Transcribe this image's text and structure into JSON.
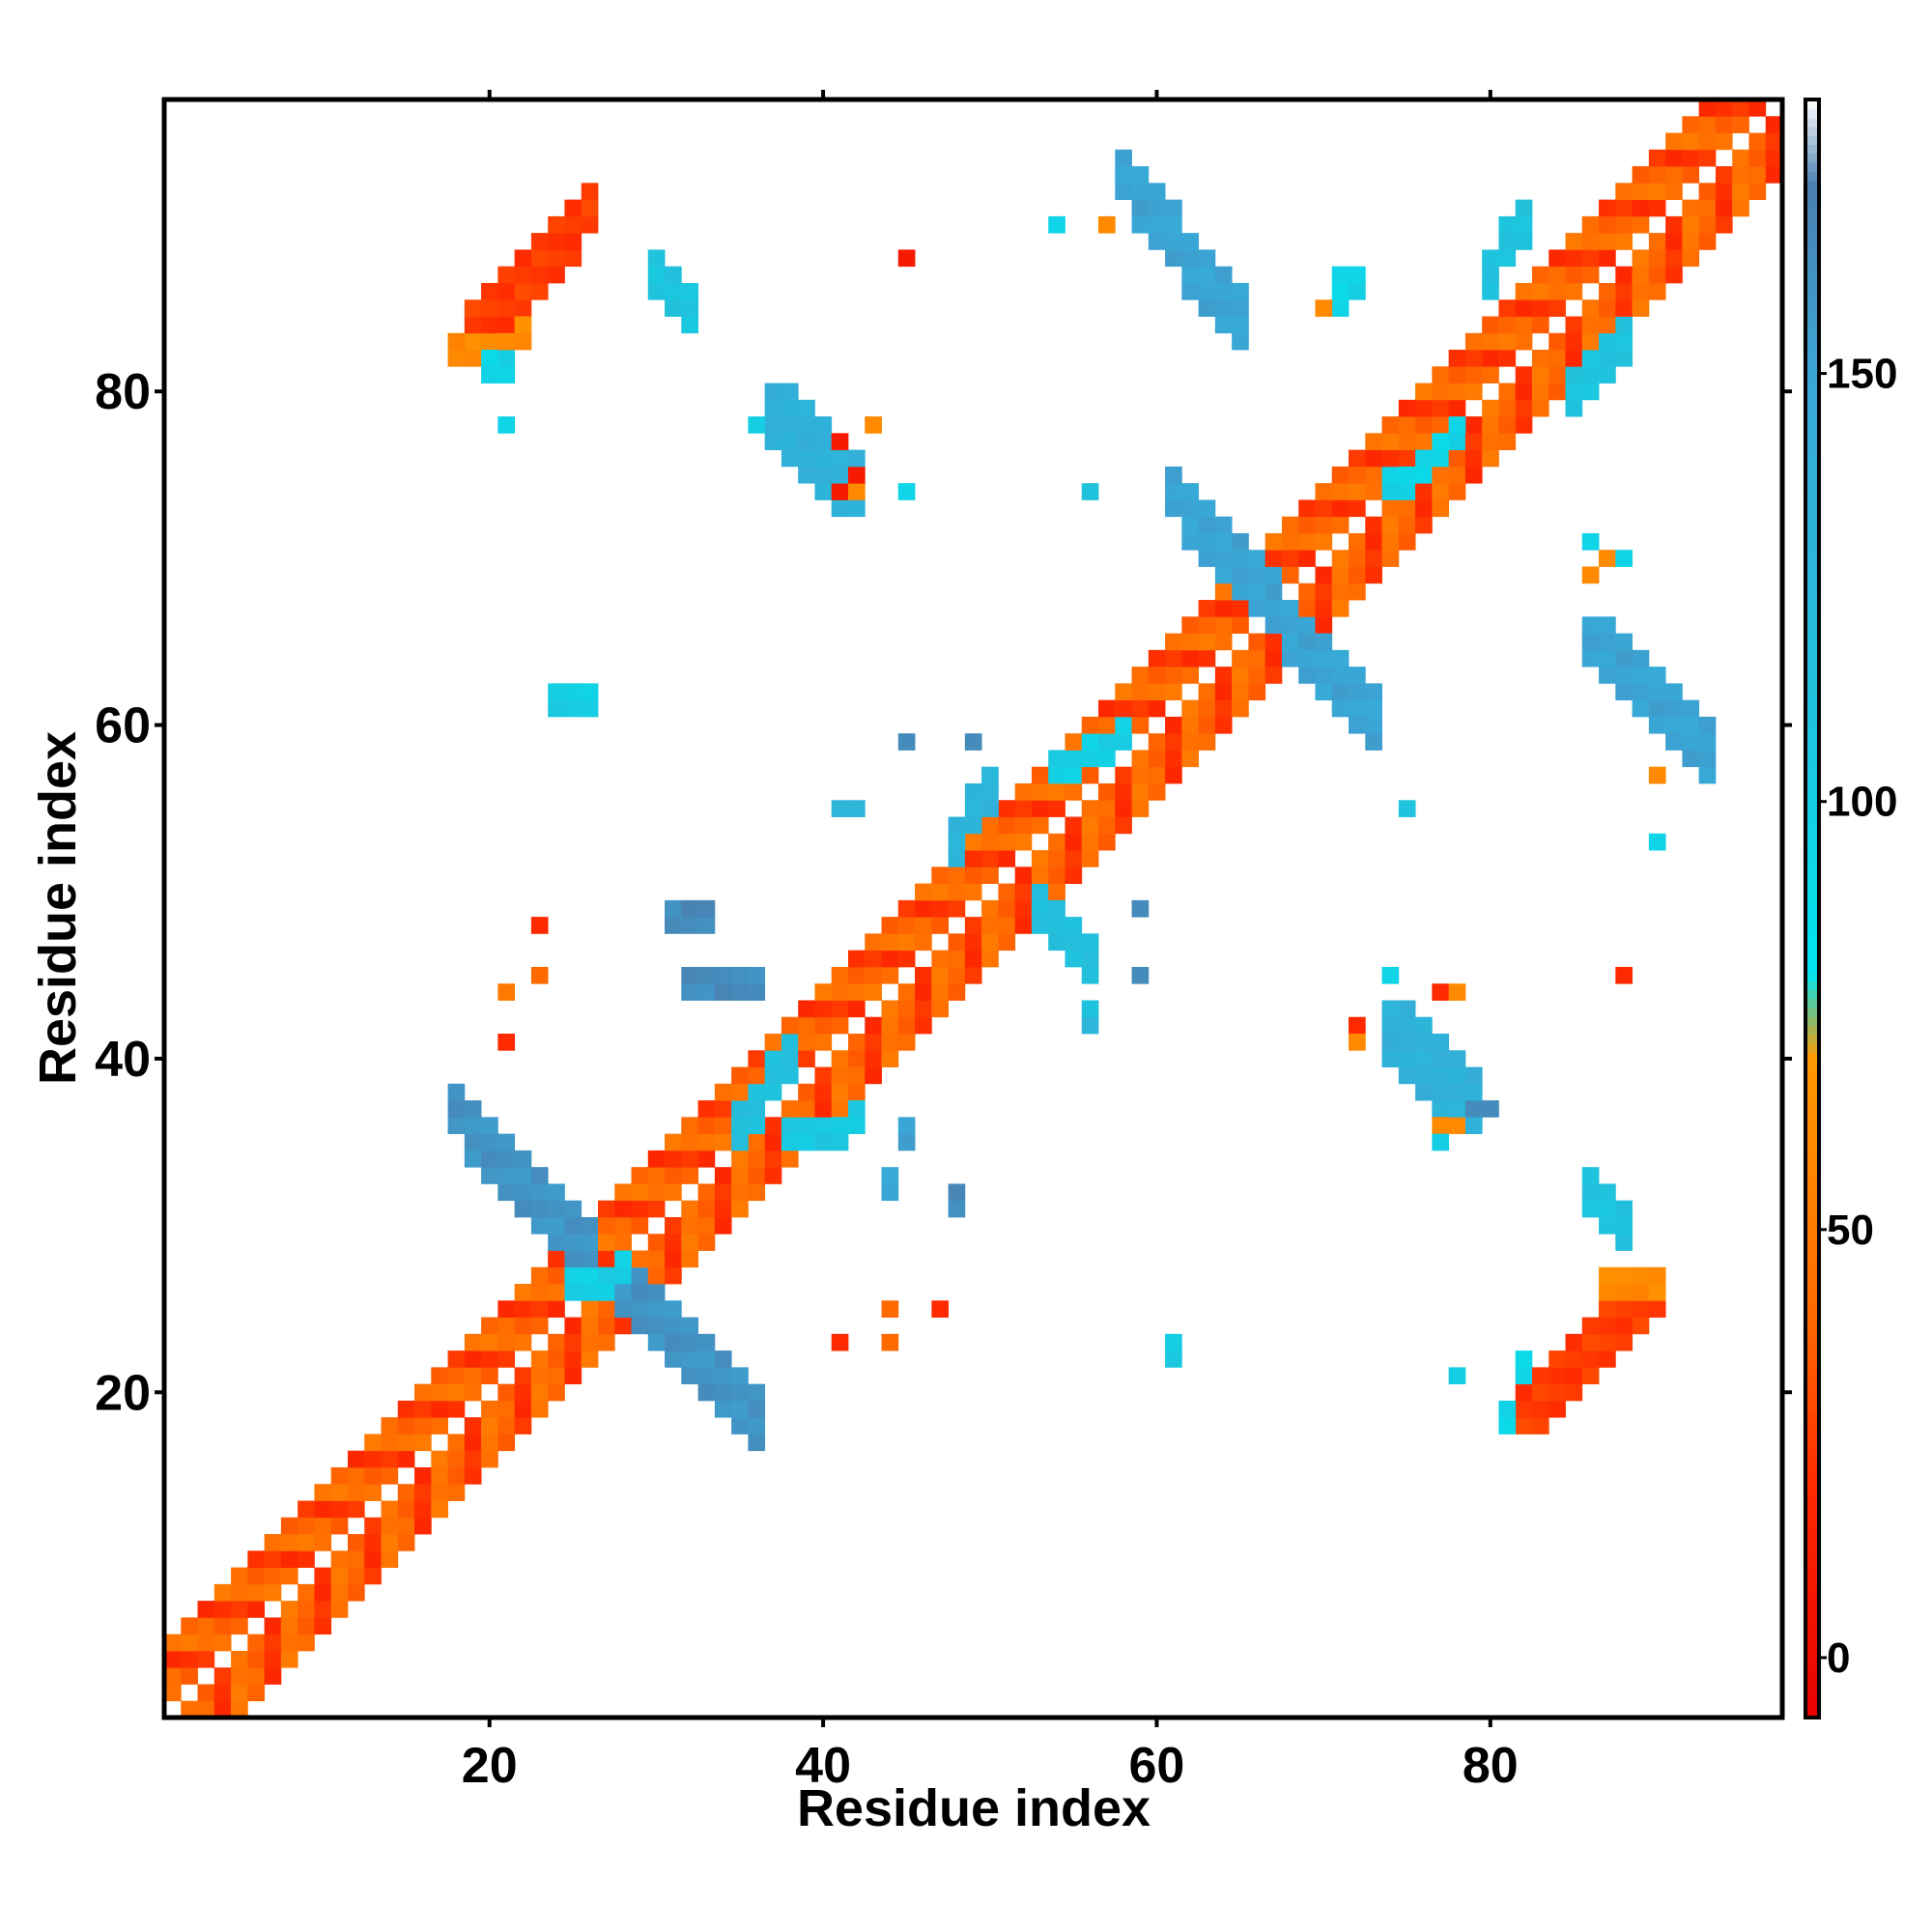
{
  "chart_data": {
    "type": "heatmap",
    "title": "",
    "xlabel": "Residue index",
    "ylabel": "Residue index",
    "xlim": [
      0.5,
      97.5
    ],
    "ylim": [
      0.5,
      97.5
    ],
    "x_ticks": [
      20,
      40,
      60,
      80
    ],
    "y_ticks": [
      20,
      40,
      60,
      80
    ],
    "colorbar": {
      "range": [
        -7,
        182
      ],
      "ticks": [
        0,
        50,
        100,
        150
      ],
      "stops": [
        {
          "value": -7,
          "color": "#e60000"
        },
        {
          "value": 20,
          "color": "#ff2a00"
        },
        {
          "value": 40,
          "color": "#ff6a00"
        },
        {
          "value": 70,
          "color": "#ff9900"
        },
        {
          "value": 80,
          "color": "#00e5f0"
        },
        {
          "value": 110,
          "color": "#1fc3dd"
        },
        {
          "value": 150,
          "color": "#3aa6d6"
        },
        {
          "value": 172,
          "color": "#4a7fb0"
        },
        {
          "value": 182,
          "color": "#ffffff"
        }
      ]
    },
    "diagonal": {
      "from": 1,
      "to": 97,
      "band": 4,
      "gap": 1,
      "values": [
        35,
        18,
        42
      ]
    },
    "patches": [
      {
        "x": [
          19,
          26
        ],
        "y": [
          83,
          91
        ],
        "dir": "pos",
        "width": 3,
        "value": 25
      },
      {
        "x": [
          18,
          22
        ],
        "y": [
          82,
          83
        ],
        "dir": "pos",
        "width": 1,
        "value": 60
      },
      {
        "x": [
          20,
          21
        ],
        "y": [
          81,
          81
        ],
        "dir": "pos",
        "width": 1,
        "value": 95
      },
      {
        "x": [
          82,
          90
        ],
        "y": [
          19,
          26
        ],
        "dir": "pos",
        "width": 3,
        "value": 25
      },
      {
        "x": [
          87,
          90
        ],
        "y": [
          26,
          26
        ],
        "dir": "pos",
        "width": 1,
        "value": 60
      },
      {
        "x": [
          81,
          82
        ],
        "y": [
          18,
          21
        ],
        "dir": "pos",
        "width": 1,
        "value": 95
      },
      {
        "x": [
          18,
          26
        ],
        "y": [
          28,
          37
        ],
        "dir": "neg",
        "width": 3,
        "value": 160
      },
      {
        "x": [
          28,
          36
        ],
        "y": [
          18,
          26
        ],
        "dir": "neg",
        "width": 3,
        "value": 160
      },
      {
        "x": [
          25,
          28
        ],
        "y": [
          26,
          27
        ],
        "dir": "pos",
        "width": 1,
        "value": 100
      },
      {
        "x": [
          58,
          65
        ],
        "y": [
          84,
          93
        ],
        "dir": "neg",
        "width": 3,
        "value": 150
      },
      {
        "x": [
          61,
          67
        ],
        "y": [
          67,
          74
        ],
        "dir": "neg",
        "width": 3,
        "value": 150
      },
      {
        "x": [
          67,
          73
        ],
        "y": [
          60,
          67
        ],
        "dir": "neg",
        "width": 3,
        "value": 150
      },
      {
        "x": [
          86,
          93
        ],
        "y": [
          58,
          65
        ],
        "dir": "neg",
        "width": 3,
        "value": 150
      },
      {
        "x": [
          37,
          42
        ],
        "y": [
          74,
          79
        ],
        "dir": "neg",
        "width": 4,
        "value": 135
      },
      {
        "x": [
          74,
          79
        ],
        "y": [
          37,
          42
        ],
        "dir": "neg",
        "width": 4,
        "value": 135
      },
      {
        "x": [
          30,
          32
        ],
        "y": [
          85,
          87
        ],
        "dir": "neg",
        "width": 2,
        "value": 110
      },
      {
        "x": [
          86,
          88
        ],
        "y": [
          30,
          32
        ],
        "dir": "neg",
        "width": 2,
        "value": 110
      },
      {
        "x": [
          35,
          38
        ],
        "y": [
          36,
          40
        ],
        "dir": "pos",
        "width": 2,
        "value": 115
      },
      {
        "x": [
          38,
          42
        ],
        "y": [
          35,
          36
        ],
        "dir": "pos",
        "width": 1,
        "value": 105
      },
      {
        "x": [
          48,
          50
        ],
        "y": [
          53,
          56
        ],
        "dir": "pos",
        "width": 2,
        "value": 130
      },
      {
        "x": [
          53,
          56
        ],
        "y": [
          46,
          49
        ],
        "dir": "neg",
        "width": 2,
        "value": 115
      },
      {
        "x": [
          80,
          82
        ],
        "y": [
          87,
          90
        ],
        "dir": "pos",
        "width": 2,
        "value": 110
      },
      {
        "x": [
          85,
          88
        ],
        "y": [
          80,
          83
        ],
        "dir": "pos",
        "width": 2,
        "value": 110
      },
      {
        "x": [
          74,
          78
        ],
        "y": [
          74,
          77
        ],
        "dir": "pos",
        "width": 1,
        "value": 95
      },
      {
        "x": [
          54,
          58
        ],
        "y": [
          57,
          59
        ],
        "dir": "pos",
        "width": 1,
        "value": 100
      },
      {
        "x": [
          24,
          26
        ],
        "y": [
          61,
          61
        ],
        "dir": "pos",
        "width": 1,
        "value": 100
      },
      {
        "x": [
          31,
          33
        ],
        "y": [
          48,
          48
        ],
        "dir": "pos",
        "width": 1,
        "value": 165
      },
      {
        "x": [
          32,
          36
        ],
        "y": [
          44,
          44
        ],
        "dir": "pos",
        "width": 1,
        "value": 165
      },
      {
        "x": [
          44,
          45
        ],
        "y": [
          32,
          35
        ],
        "dir": "pos",
        "width": 1,
        "value": 150
      },
      {
        "x": [
          48,
          48
        ],
        "y": [
          31,
          33
        ],
        "dir": "pos",
        "width": 1,
        "value": 165
      },
      {
        "x": [
          61,
          61
        ],
        "y": [
          22,
          24
        ],
        "dir": "pos",
        "width": 1,
        "value": 100
      },
      {
        "x": [
          71,
          72
        ],
        "y": [
          85,
          86
        ],
        "dir": "pos",
        "width": 1,
        "value": 95
      }
    ],
    "points": [
      [
        45,
        88,
        10
      ],
      [
        54,
        90,
        95
      ],
      [
        57,
        90,
        60
      ],
      [
        21,
        78,
        95
      ],
      [
        36,
        78,
        100
      ],
      [
        41,
        77,
        10
      ],
      [
        43,
        78,
        60
      ],
      [
        42,
        75,
        10
      ],
      [
        41,
        74,
        10
      ],
      [
        42,
        74,
        60
      ],
      [
        45,
        74,
        95
      ],
      [
        56,
        74,
        110
      ],
      [
        70,
        85,
        60
      ],
      [
        71,
        87,
        95
      ],
      [
        86,
        71,
        95
      ],
      [
        87,
        70,
        60
      ],
      [
        88,
        70,
        95
      ],
      [
        86,
        69,
        60
      ],
      [
        45,
        59,
        165
      ],
      [
        49,
        59,
        165
      ],
      [
        41,
        55,
        130
      ],
      [
        42,
        55,
        130
      ],
      [
        75,
        55,
        110
      ],
      [
        90,
        57,
        60
      ],
      [
        90,
        53,
        95
      ],
      [
        59,
        49,
        165
      ],
      [
        59,
        45,
        165
      ],
      [
        56,
        42,
        130
      ],
      [
        56,
        43,
        110
      ],
      [
        23,
        48,
        20
      ],
      [
        23,
        45,
        40
      ],
      [
        21,
        44,
        50
      ],
      [
        21,
        41,
        20
      ],
      [
        74,
        45,
        95
      ],
      [
        77,
        44,
        20
      ],
      [
        78,
        44,
        60
      ],
      [
        72,
        42,
        20
      ],
      [
        72,
        41,
        60
      ],
      [
        77,
        36,
        60
      ],
      [
        78,
        36,
        60
      ],
      [
        77,
        35,
        100
      ],
      [
        79,
        37,
        165
      ],
      [
        80,
        37,
        165
      ],
      [
        88,
        45,
        20
      ],
      [
        44,
        25,
        40
      ],
      [
        47,
        25,
        20
      ],
      [
        41,
        23,
        20
      ],
      [
        44,
        23,
        40
      ],
      [
        78,
        21,
        100
      ]
    ]
  }
}
